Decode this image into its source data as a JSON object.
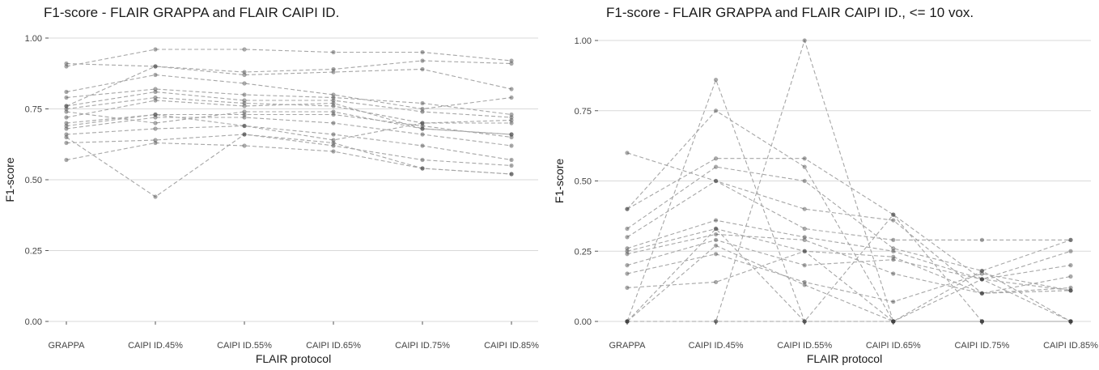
{
  "chart_data": [
    {
      "type": "line",
      "title": "F1-score - FLAIR GRAPPA and FLAIR CAIPI ID.",
      "xlabel": "FLAIR protocol",
      "ylabel": "F1-score",
      "categories": [
        "GRAPPA",
        "CAIPI ID.45%",
        "CAIPI ID.55%",
        "CAIPI ID.65%",
        "CAIPI ID.75%",
        "CAIPI ID.85%"
      ],
      "ylim": [
        0,
        1
      ],
      "yticks": [
        "0.00",
        "0.25",
        "0.50",
        "0.75",
        "1.00"
      ],
      "grid": "horizontal",
      "series": [
        {
          "values": [
            0.9,
            0.96,
            0.96,
            0.95,
            0.95,
            0.92
          ]
        },
        {
          "values": [
            0.91,
            0.9,
            0.88,
            0.89,
            0.92,
            0.91
          ]
        },
        {
          "values": [
            0.76,
            0.9,
            0.87,
            0.88,
            0.89,
            0.82
          ]
        },
        {
          "values": [
            0.81,
            0.87,
            0.84,
            0.8,
            0.75,
            0.79
          ]
        },
        {
          "values": [
            0.79,
            0.82,
            0.8,
            0.79,
            0.77,
            0.73
          ]
        },
        {
          "values": [
            0.76,
            0.81,
            0.78,
            0.78,
            0.74,
            0.72
          ]
        },
        {
          "values": [
            0.75,
            0.79,
            0.77,
            0.76,
            0.7,
            0.7
          ]
        },
        {
          "values": [
            0.72,
            0.78,
            0.76,
            0.77,
            0.68,
            0.66
          ]
        },
        {
          "values": [
            0.7,
            0.73,
            0.73,
            0.73,
            0.69,
            0.65
          ]
        },
        {
          "values": [
            0.68,
            0.72,
            0.72,
            0.7,
            0.66,
            0.62
          ]
        },
        {
          "values": [
            0.66,
            0.68,
            0.69,
            0.66,
            0.62,
            0.57
          ]
        },
        {
          "values": [
            0.63,
            0.64,
            0.66,
            0.62,
            0.57,
            0.55
          ]
        },
        {
          "values": [
            0.57,
            0.63,
            0.62,
            0.6,
            0.54,
            0.52
          ]
        },
        {
          "values": [
            0.65,
            0.44,
            0.66,
            0.63,
            0.54,
            0.52
          ]
        },
        {
          "values": [
            0.69,
            0.73,
            0.69,
            0.64,
            0.7,
            0.71
          ]
        },
        {
          "values": [
            0.74,
            0.7,
            0.74,
            0.74,
            0.68,
            0.66
          ]
        }
      ]
    },
    {
      "type": "line",
      "title": "F1-score - FLAIR GRAPPA and FLAIR CAIPI ID., <= 10 vox.",
      "xlabel": "FLAIR protocol",
      "ylabel": "F1-score",
      "categories": [
        "GRAPPA",
        "CAIPI ID.45%",
        "CAIPI ID.55%",
        "CAIPI ID.65%",
        "CAIPI ID.75%",
        "CAIPI ID.85%"
      ],
      "ylim": [
        0,
        1
      ],
      "yticks": [
        "0.00",
        "0.25",
        "0.50",
        "0.75",
        "1.00"
      ],
      "grid": "horizontal",
      "series": [
        {
          "values": [
            0.0,
            0.86,
            0.0,
            0.0,
            0.0,
            0.0
          ]
        },
        {
          "values": [
            0.0,
            0.0,
            1.0,
            0.0,
            0.0,
            0.0
          ]
        },
        {
          "values": [
            0.6,
            0.5,
            0.4,
            0.36,
            0.1,
            0.11
          ]
        },
        {
          "values": [
            0.4,
            0.75,
            0.55,
            0.0,
            0.15,
            0.0
          ]
        },
        {
          "values": [
            0.4,
            0.58,
            0.58,
            0.38,
            0.15,
            0.25
          ]
        },
        {
          "values": [
            0.33,
            0.55,
            0.5,
            0.26,
            0.18,
            0.29
          ]
        },
        {
          "values": [
            0.3,
            0.5,
            0.33,
            0.29,
            0.29,
            0.29
          ]
        },
        {
          "values": [
            0.26,
            0.36,
            0.3,
            0.25,
            0.15,
            0.2
          ]
        },
        {
          "values": [
            0.25,
            0.33,
            0.25,
            0.23,
            0.1,
            0.16
          ]
        },
        {
          "values": [
            0.24,
            0.31,
            0.29,
            0.17,
            0.1,
            0.12
          ]
        },
        {
          "values": [
            0.2,
            0.29,
            0.2,
            0.22,
            0.15,
            0.11
          ]
        },
        {
          "values": [
            0.17,
            0.24,
            0.14,
            0.07,
            0.17,
            0.11
          ]
        },
        {
          "values": [
            0.12,
            0.14,
            0.25,
            0.0,
            0.18,
            0.0
          ]
        },
        {
          "values": [
            0.0,
            0.27,
            0.13,
            0.0,
            0.0,
            0.0
          ]
        },
        {
          "values": [
            0.0,
            0.33,
            0.0,
            0.38,
            0.0,
            0.0
          ]
        },
        {
          "values": [
            0.0,
            0.0,
            0.0,
            0.0,
            0.0,
            0.0
          ]
        }
      ]
    }
  ]
}
